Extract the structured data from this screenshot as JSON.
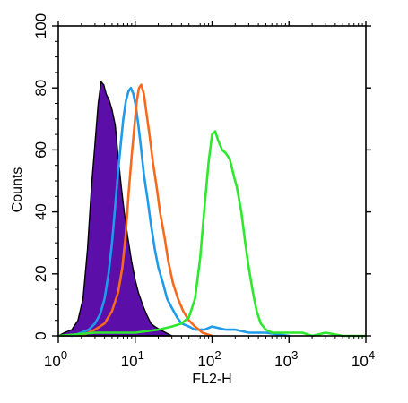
{
  "chart_data": {
    "type": "line",
    "xlabel": "FL2-H",
    "ylabel": "Counts",
    "xscale": "log",
    "xlim": [
      1,
      10000
    ],
    "ylim": [
      0,
      100
    ],
    "x_ticks": [
      {
        "value": 1,
        "base": "10",
        "exp": "0"
      },
      {
        "value": 10,
        "base": "10",
        "exp": "1"
      },
      {
        "value": 100,
        "base": "10",
        "exp": "2"
      },
      {
        "value": 1000,
        "base": "10",
        "exp": "3"
      },
      {
        "value": 10000,
        "base": "10",
        "exp": "4"
      }
    ],
    "y_ticks": [
      0,
      20,
      40,
      60,
      80,
      100
    ],
    "legend": "none",
    "grid": false,
    "series": [
      {
        "color": "#5b0ea8",
        "filled": true,
        "outline_color": "#000000",
        "x": [
          0.95,
          1.2,
          1.5,
          1.8,
          2.1,
          2.4,
          2.7,
          3.0,
          3.3,
          3.6,
          3.9,
          4.2,
          4.6,
          5.0,
          5.5,
          6.0,
          6.6,
          7.2,
          8.0,
          9.0,
          10.0,
          11.0,
          12.5,
          14.0,
          16.0,
          18.0,
          21.0,
          25.0,
          30.0
        ],
        "y": [
          0,
          1,
          2,
          5,
          12,
          28,
          48,
          62,
          75,
          82,
          81,
          78,
          76,
          73,
          68,
          58,
          48,
          40,
          32,
          24,
          18,
          14,
          10,
          7,
          4,
          3,
          2,
          1,
          0
        ]
      },
      {
        "color": "#1e9bea",
        "filled": false,
        "x": [
          1.5,
          2.0,
          2.5,
          3.0,
          3.5,
          4.0,
          4.5,
          5.0,
          5.5,
          6.0,
          6.5,
          7.0,
          7.6,
          8.2,
          8.8,
          9.5,
          10.2,
          11.0,
          12.0,
          13.0,
          14.5,
          16.0,
          18.0,
          20.0,
          23.0,
          26.0,
          30.0,
          35.0,
          40.0,
          50.0,
          60.0,
          80.0,
          100,
          150,
          200,
          300,
          500,
          1000
        ],
        "y": [
          0,
          1,
          2,
          4,
          7,
          12,
          20,
          30,
          42,
          53,
          62,
          70,
          76,
          79,
          80,
          78,
          74,
          68,
          60,
          52,
          44,
          36,
          28,
          22,
          17,
          12,
          9,
          6,
          4,
          3,
          2,
          2,
          3,
          2,
          2,
          1,
          1,
          0
        ]
      },
      {
        "color": "#f76a1e",
        "filled": false,
        "x": [
          2.0,
          3.0,
          4.0,
          5.0,
          6.0,
          6.8,
          7.5,
          8.2,
          9.0,
          9.8,
          10.5,
          11.2,
          12.0,
          13.0,
          14.0,
          15.5,
          17.0,
          19.0,
          21.0,
          24.0,
          27.0,
          31.0,
          36.0,
          42.0,
          50.0,
          60.0,
          75.0,
          100
        ],
        "y": [
          0,
          2,
          4,
          8,
          14,
          22,
          32,
          46,
          58,
          68,
          76,
          80,
          81,
          78,
          72,
          64,
          56,
          48,
          40,
          32,
          24,
          17,
          12,
          8,
          5,
          3,
          1,
          0
        ]
      },
      {
        "color": "#2ee82e",
        "filled": false,
        "x": [
          1.0,
          3.0,
          10.0,
          20.0,
          30.0,
          40.0,
          50.0,
          60.0,
          70.0,
          80.0,
          90.0,
          100,
          110,
          120,
          135,
          150,
          170,
          190,
          210,
          240,
          270,
          300,
          340,
          380,
          430,
          500,
          600,
          800,
          1000,
          1500,
          2000,
          3000,
          5000,
          10000
        ],
        "y": [
          0,
          1,
          1,
          2,
          3,
          4,
          6,
          12,
          25,
          42,
          56,
          65,
          66,
          63,
          60,
          59,
          57,
          52,
          48,
          40,
          30,
          22,
          14,
          8,
          4,
          2,
          1,
          1,
          1,
          1,
          0,
          1,
          0,
          0
        ]
      }
    ]
  }
}
